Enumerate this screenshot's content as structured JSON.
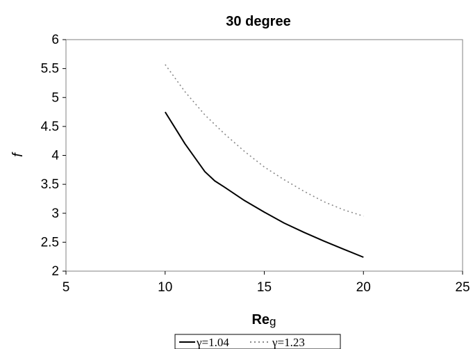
{
  "chart_data": {
    "type": "line",
    "title": "30 degree",
    "xlabel_main": "Re",
    "xlabel_sub": "g",
    "ylabel": "f",
    "xlim": [
      5,
      25
    ],
    "ylim": [
      2,
      6
    ],
    "xticks": [
      5,
      10,
      15,
      20,
      25
    ],
    "xtick_labels": [
      "5",
      "10",
      "15",
      "20",
      "25"
    ],
    "yticks": [
      2,
      2.5,
      3,
      3.5,
      4,
      4.5,
      5,
      5.5,
      6
    ],
    "ytick_labels": [
      "2",
      "2.5",
      "3",
      "3.5",
      "4",
      "4.5",
      "5",
      "5.5",
      "6"
    ],
    "grid": false,
    "legend_position": "bottom",
    "series": [
      {
        "name": "γ=1.04",
        "style": "solid",
        "color": "#000000",
        "x": [
          10,
          11,
          12,
          12.5,
          13,
          14,
          15,
          16,
          17,
          18,
          19,
          20
        ],
        "y": [
          4.75,
          4.2,
          3.72,
          3.56,
          3.45,
          3.22,
          3.02,
          2.83,
          2.67,
          2.52,
          2.38,
          2.24
        ]
      },
      {
        "name": "γ=1.23",
        "style": "dotted",
        "color": "#888888",
        "x": [
          10,
          11,
          12,
          13,
          14,
          15,
          16,
          17,
          18,
          19,
          20
        ],
        "y": [
          5.57,
          5.1,
          4.7,
          4.37,
          4.07,
          3.8,
          3.58,
          3.38,
          3.2,
          3.06,
          2.95
        ]
      }
    ]
  }
}
